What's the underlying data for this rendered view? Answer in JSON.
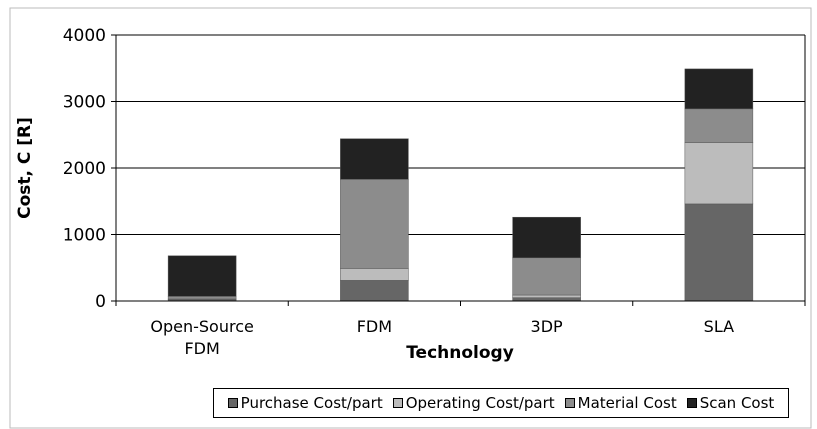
{
  "chart_data": {
    "type": "stacked_bar",
    "x_label": "Technology",
    "y_label": "Cost, C [R]",
    "categories": [
      "Open-Source FDM",
      "FDM",
      "3DP",
      "SLA"
    ],
    "series": [
      {
        "name": "Purchase Cost/part",
        "color": "#666666",
        "values": [
          20,
          310,
          50,
          1460
        ]
      },
      {
        "name": "Operating Cost/part",
        "color": "#bcbcbc",
        "values": [
          10,
          180,
          40,
          920
        ]
      },
      {
        "name": "Material Cost",
        "color": "#8c8c8c",
        "values": [
          40,
          1340,
          560,
          510
        ]
      },
      {
        "name": "Scan Cost",
        "color": "#222222",
        "values": [
          610,
          610,
          610,
          600
        ]
      }
    ],
    "ylim": [
      0,
      4000
    ],
    "yticks": [
      0,
      1000,
      2000,
      3000,
      4000
    ],
    "grid": true,
    "legend": "bottom"
  }
}
